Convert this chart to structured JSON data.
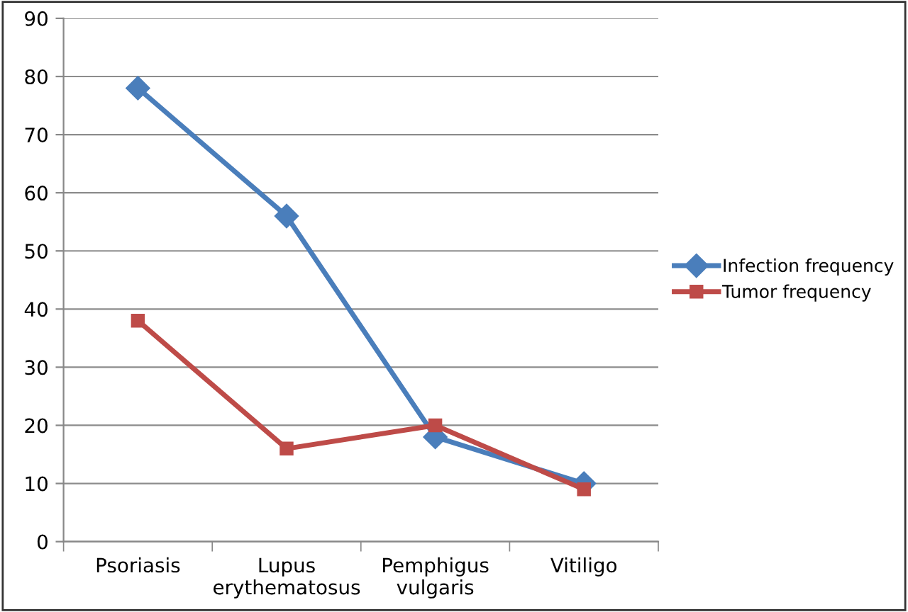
{
  "chart_data": {
    "type": "line",
    "categories": [
      "Psoriasis",
      "Lupus\nerythematosus",
      "Pemphigus\nvulgaris",
      "Vitiligo"
    ],
    "series": [
      {
        "name": "Infection frequency",
        "color": "#4a7ebb",
        "marker": "diamond",
        "values": [
          78,
          56,
          18,
          10
        ]
      },
      {
        "name": "Tumor frequency",
        "color": "#be4b48",
        "marker": "square",
        "values": [
          38,
          16,
          20,
          9
        ]
      }
    ],
    "ylim": [
      0,
      90
    ],
    "yticks": [
      0,
      10,
      20,
      30,
      40,
      50,
      60,
      70,
      80,
      90
    ],
    "grid": "y",
    "legend": "right",
    "line_style": "solid"
  }
}
